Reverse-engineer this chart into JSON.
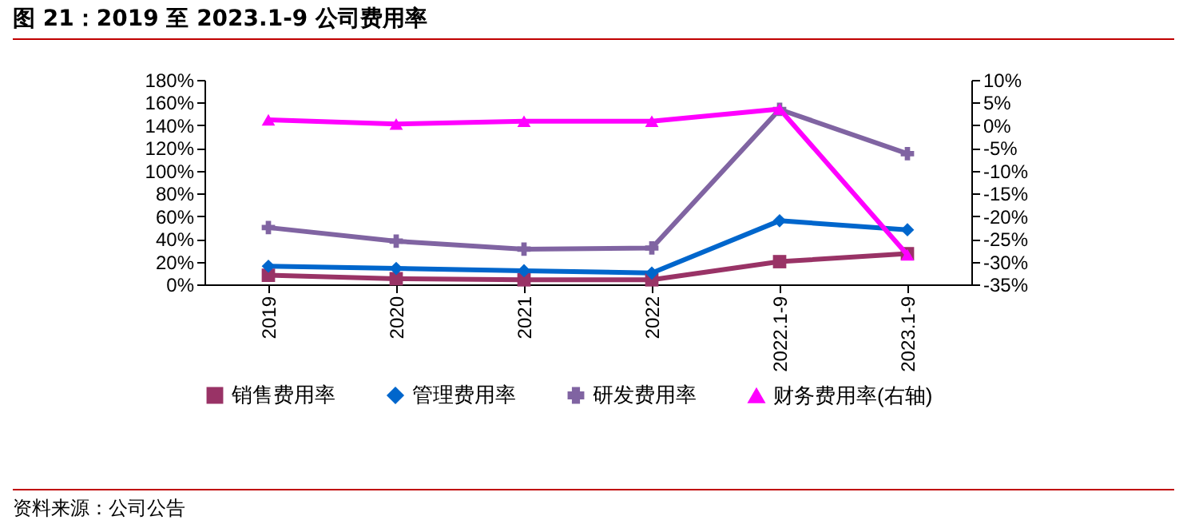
{
  "chart_data": {
    "type": "line",
    "title": "图 21：2019 至 2023.1-9 公司费用率",
    "annotations": [
      "资料来源：公司公告"
    ],
    "categories": [
      "2019",
      "2020",
      "2021",
      "2022",
      "2022.1-9",
      "2023.1-9"
    ],
    "ylim": [
      0,
      180
    ],
    "yticks": [
      {
        "value": 0,
        "label": "0%"
      },
      {
        "value": 20,
        "label": "20%"
      },
      {
        "value": 40,
        "label": "40%"
      },
      {
        "value": 60,
        "label": "60%"
      },
      {
        "value": 80,
        "label": "80%"
      },
      {
        "value": 100,
        "label": "100%"
      },
      {
        "value": 120,
        "label": "120%"
      },
      {
        "value": 140,
        "label": "140%"
      },
      {
        "value": 160,
        "label": "160%"
      },
      {
        "value": 180,
        "label": "180%"
      }
    ],
    "y2lim": [
      -35,
      10
    ],
    "y2ticks": [
      {
        "value": 10,
        "label": "10%"
      },
      {
        "value": 5,
        "label": "5%"
      },
      {
        "value": 0,
        "label": "0%"
      },
      {
        "value": -5,
        "label": "-5%"
      },
      {
        "value": -10,
        "label": "-10%"
      },
      {
        "value": -15,
        "label": "-15%"
      },
      {
        "value": -20,
        "label": "-20%"
      },
      {
        "value": -25,
        "label": "-25%"
      },
      {
        "value": -30,
        "label": "-30%"
      },
      {
        "value": -35,
        "label": "-35%"
      }
    ],
    "grid": false,
    "legend": "bottom",
    "series": [
      {
        "name": "销售费用率",
        "color": "#993366",
        "marker": "square",
        "values": [
          8,
          5,
          4,
          4,
          20,
          27
        ]
      },
      {
        "name": "管理费用率",
        "color": "#0066cc",
        "marker": "diamond",
        "values": [
          16,
          14,
          12,
          10,
          56,
          48
        ]
      },
      {
        "name": "研发费用率",
        "color": "#8064a2",
        "marker": "cross",
        "values": [
          50,
          38,
          31,
          32,
          154,
          115
        ]
      },
      {
        "name": "财务费用率(右轴)",
        "color": "#ff00ff",
        "marker": "triangle",
        "axis": "y2",
        "values": [
          1.2,
          0.3,
          0.9,
          0.9,
          3.6,
          -28.5
        ]
      }
    ]
  }
}
